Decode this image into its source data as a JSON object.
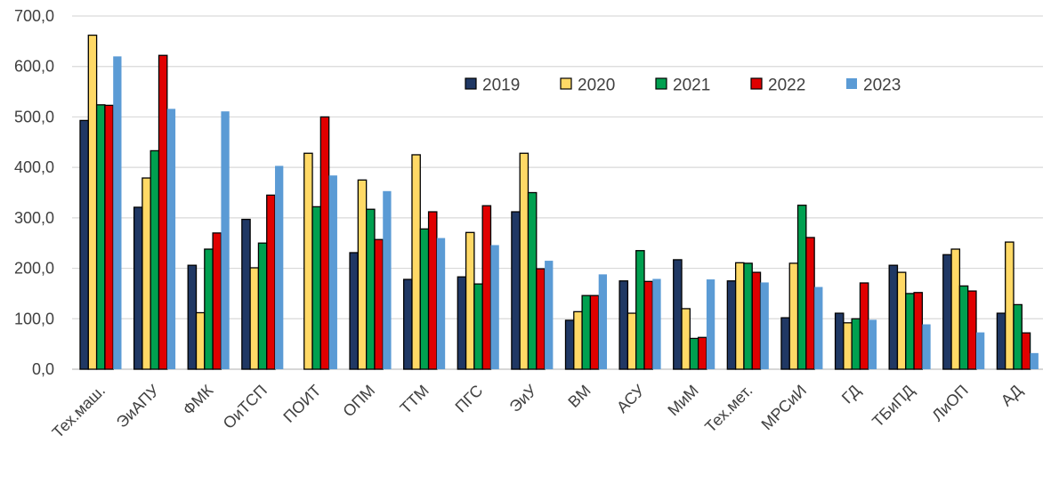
{
  "chart_data": {
    "type": "bar",
    "title": "",
    "xlabel": "",
    "ylabel": "",
    "ylim": [
      0,
      700
    ],
    "yticks": [
      "0,0",
      "100,0",
      "200,0",
      "300,0",
      "400,0",
      "500,0",
      "600,0",
      "700,0"
    ],
    "grid": "horizontal",
    "legend_position": "top-right",
    "categories": [
      "Тех.маш.",
      "ЭиАПУ",
      "ФМК",
      "ОиТСП",
      "ПОИТ",
      "ОПМ",
      "ТТМ",
      "ПГС",
      "ЭиУ",
      "ВМ",
      "АСУ",
      "МиМ",
      "Тех.мет.",
      "МРСиИ",
      "ГД",
      "ТБиПД",
      "ЛиОП",
      "АД"
    ],
    "series": [
      {
        "name": "2019",
        "color": "#203864",
        "outlined": true,
        "values": [
          493,
          321,
          206,
          297,
          0,
          231,
          178,
          183,
          312,
          97,
          175,
          217,
          175,
          102,
          111,
          206,
          227,
          111
        ]
      },
      {
        "name": "2020",
        "color": "#FFD966",
        "outlined": true,
        "values": [
          662,
          379,
          112,
          201,
          428,
          375,
          425,
          271,
          428,
          114,
          111,
          120,
          211,
          210,
          92,
          192,
          238,
          252
        ]
      },
      {
        "name": "2021",
        "color": "#00A050",
        "outlined": true,
        "values": [
          524,
          433,
          238,
          250,
          322,
          317,
          278,
          169,
          350,
          146,
          235,
          61,
          210,
          325,
          100,
          150,
          165,
          128
        ]
      },
      {
        "name": "2022",
        "color": "#E00000",
        "outlined": true,
        "values": [
          523,
          622,
          270,
          345,
          500,
          257,
          312,
          324,
          199,
          146,
          174,
          63,
          192,
          261,
          171,
          152,
          155,
          72
        ]
      },
      {
        "name": "2023",
        "color": "#5B9BD5",
        "outlined": false,
        "values": [
          620,
          516,
          511,
          403,
          384,
          353,
          260,
          246,
          215,
          188,
          179,
          178,
          172,
          163,
          98,
          89,
          73,
          32
        ]
      }
    ]
  }
}
